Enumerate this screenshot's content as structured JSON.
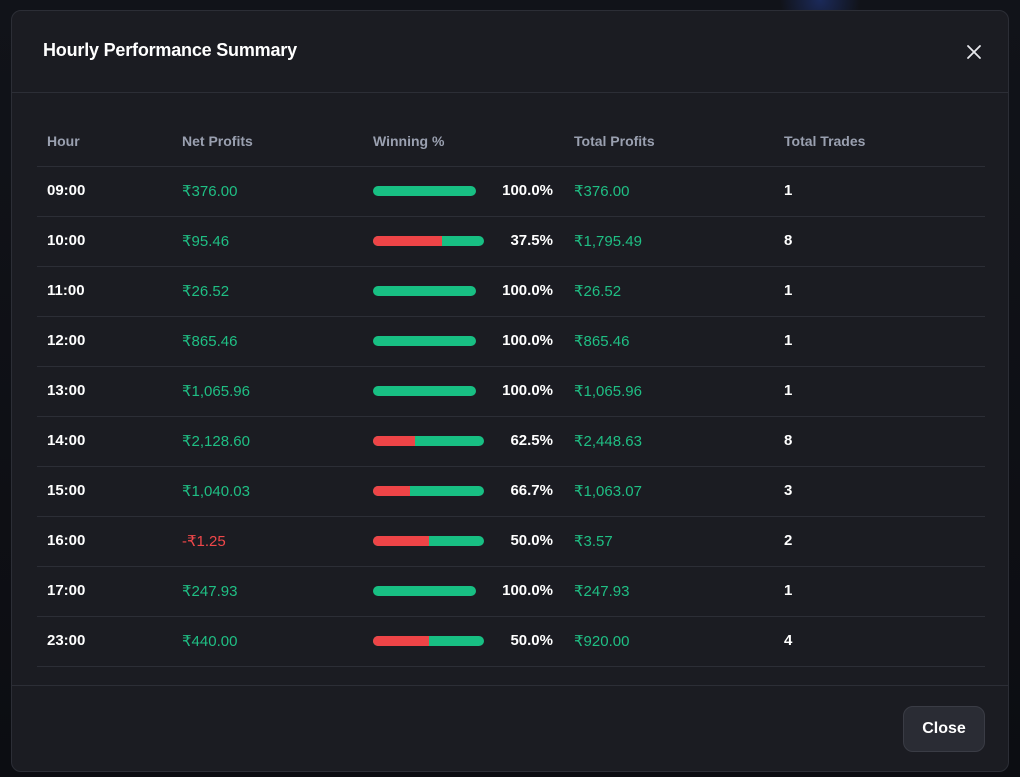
{
  "modal": {
    "title": "Hourly Performance Summary",
    "close_label": "Close",
    "close_icon": "close-icon"
  },
  "colors": {
    "positive": "#1fbf84",
    "negative": "#f0474a",
    "bar_win": "#18bf83",
    "bar_loss": "#ee4447"
  },
  "table": {
    "headers": [
      "Hour",
      "Net Profits",
      "Winning %",
      "Total Profits",
      "Total Trades"
    ],
    "rows": [
      {
        "hour": "09:00",
        "net": "₹376.00",
        "net_negative": false,
        "winning": "100.0%",
        "winning_value": 100.0,
        "total": "₹376.00",
        "trades": "1"
      },
      {
        "hour": "10:00",
        "net": "₹95.46",
        "net_negative": false,
        "winning": "37.5%",
        "winning_value": 37.5,
        "total": "₹1,795.49",
        "trades": "8"
      },
      {
        "hour": "11:00",
        "net": "₹26.52",
        "net_negative": false,
        "winning": "100.0%",
        "winning_value": 100.0,
        "total": "₹26.52",
        "trades": "1"
      },
      {
        "hour": "12:00",
        "net": "₹865.46",
        "net_negative": false,
        "winning": "100.0%",
        "winning_value": 100.0,
        "total": "₹865.46",
        "trades": "1"
      },
      {
        "hour": "13:00",
        "net": "₹1,065.96",
        "net_negative": false,
        "winning": "100.0%",
        "winning_value": 100.0,
        "total": "₹1,065.96",
        "trades": "1"
      },
      {
        "hour": "14:00",
        "net": "₹2,128.60",
        "net_negative": false,
        "winning": "62.5%",
        "winning_value": 62.5,
        "total": "₹2,448.63",
        "trades": "8"
      },
      {
        "hour": "15:00",
        "net": "₹1,040.03",
        "net_negative": false,
        "winning": "66.7%",
        "winning_value": 66.7,
        "total": "₹1,063.07",
        "trades": "3"
      },
      {
        "hour": "16:00",
        "net": "-₹1.25",
        "net_negative": true,
        "winning": "50.0%",
        "winning_value": 50.0,
        "total": "₹3.57",
        "trades": "2"
      },
      {
        "hour": "17:00",
        "net": "₹247.93",
        "net_negative": false,
        "winning": "100.0%",
        "winning_value": 100.0,
        "total": "₹247.93",
        "trades": "1"
      },
      {
        "hour": "23:00",
        "net": "₹440.00",
        "net_negative": false,
        "winning": "50.0%",
        "winning_value": 50.0,
        "total": "₹920.00",
        "trades": "4"
      }
    ]
  }
}
